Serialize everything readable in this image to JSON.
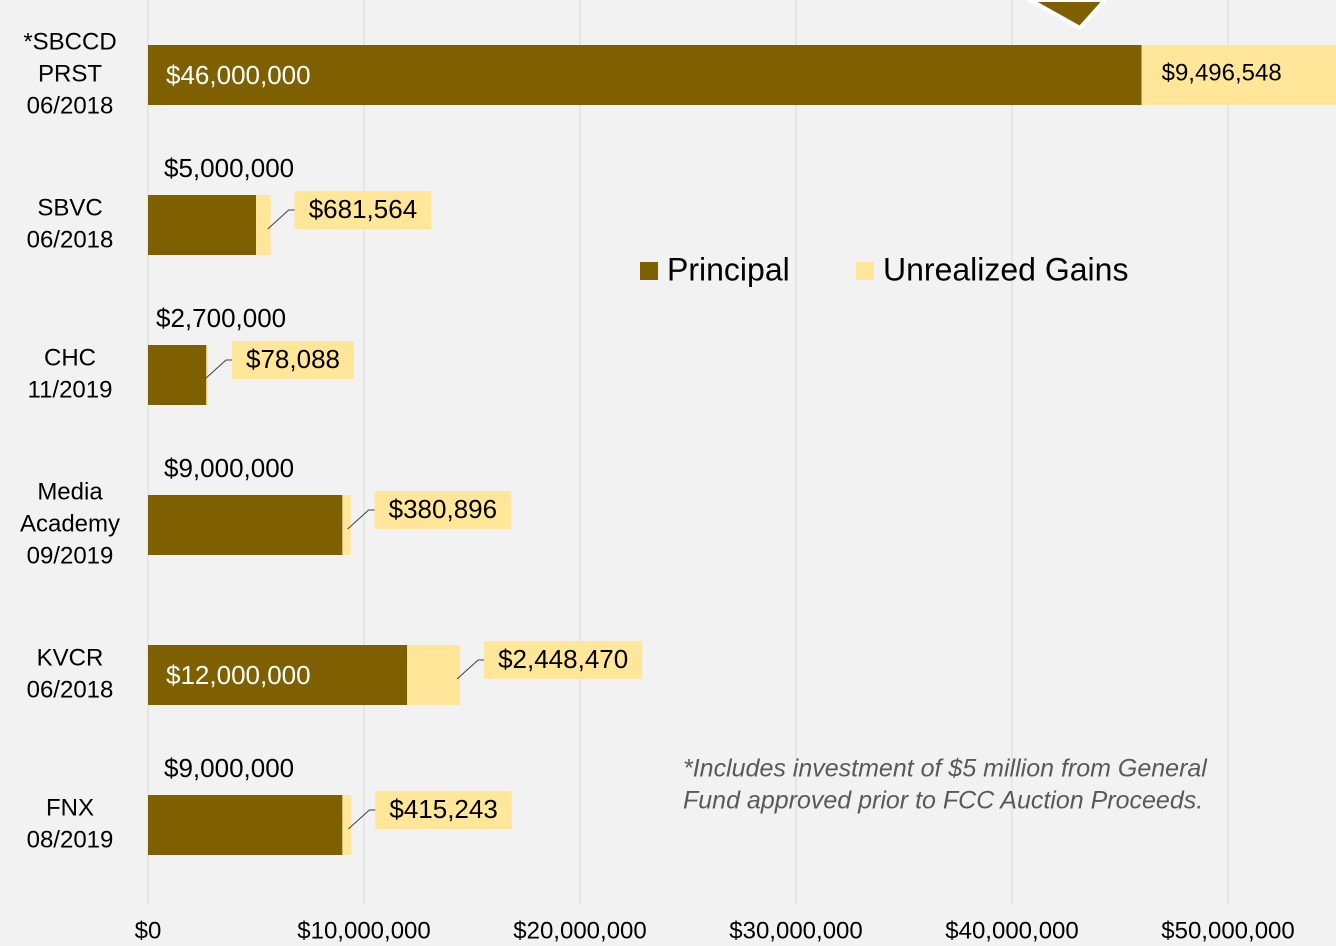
{
  "chart_data": {
    "type": "stacked-bar-horizontal",
    "categories": [
      [
        "*SBCCD",
        "PRST",
        "06/2018"
      ],
      [
        "SBVC",
        "06/2018"
      ],
      [
        "CHC",
        "11/2019"
      ],
      [
        "Media",
        "Academy",
        "09/2019"
      ],
      [
        "KVCR",
        "06/2018"
      ],
      [
        "FNX",
        "08/2019"
      ]
    ],
    "series": [
      {
        "name": "Principal",
        "color": "#7f6000",
        "values": [
          46000000,
          5000000,
          2700000,
          9000000,
          12000000,
          9000000
        ],
        "value_labels": [
          "$46,000,000",
          "$5,000,000",
          "$2,700,000",
          "$9,000,000",
          "$12,000,000",
          "$9,000,000"
        ]
      },
      {
        "name": "Unrealized Gains",
        "color": "#ffe699",
        "values": [
          9496548,
          681564,
          78088,
          380896,
          2448470,
          415243
        ],
        "value_labels": [
          "$9,496,548",
          "$681,564",
          "$78,088",
          "$380,896",
          "$2,448,470",
          "$415,243"
        ]
      }
    ],
    "xlim": [
      0,
      55000000
    ],
    "xticks": [
      {
        "value": 0,
        "label": "$0"
      },
      {
        "value": 10000000,
        "label": "$10,000,000"
      },
      {
        "value": 20000000,
        "label": "$20,000,000"
      },
      {
        "value": 30000000,
        "label": "$30,000,000"
      },
      {
        "value": 40000000,
        "label": "$40,000,000"
      },
      {
        "value": 50000000,
        "label": "$50,000,000"
      }
    ],
    "grid": true,
    "note": [
      "*Includes  investment of $5 million from General",
      "Fund approved prior to FCC Auction Proceeds."
    ]
  }
}
